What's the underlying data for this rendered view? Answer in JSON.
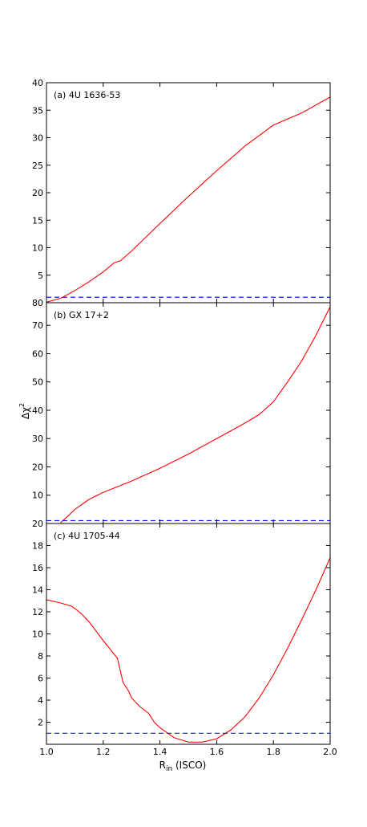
{
  "figure": {
    "ylabel_main": "Δχ",
    "ylabel_sup": "2",
    "xlabel_main": "R",
    "xlabel_sub": "in",
    "xlabel_rest": " (ISCO)"
  },
  "chart_data": [
    {
      "type": "line",
      "panel_label": "(a) 4U 1636-53",
      "xlim": [
        1.0,
        2.0
      ],
      "ylim": [
        0,
        40
      ],
      "yticks": [
        0,
        5,
        10,
        15,
        20,
        25,
        30,
        35,
        40
      ],
      "ytick_labels": [
        "",
        "5",
        "10",
        "15",
        "20",
        "25",
        "30",
        "35",
        "40"
      ],
      "series": [
        {
          "color": "#ff0000",
          "style": "solid",
          "x": [
            1.0,
            1.05,
            1.1,
            1.15,
            1.2,
            1.24,
            1.26,
            1.3,
            1.4,
            1.5,
            1.6,
            1.7,
            1.8,
            1.9,
            2.0
          ],
          "y": [
            0.1,
            0.8,
            2.2,
            3.8,
            5.6,
            7.3,
            7.6,
            9.4,
            14.4,
            19.3,
            24.0,
            28.5,
            32.3,
            34.5,
            37.4
          ]
        },
        {
          "color": "#0000ff",
          "style": "dashed",
          "x": [
            1.0,
            2.0
          ],
          "y": [
            1.0,
            1.0
          ]
        }
      ]
    },
    {
      "type": "line",
      "panel_label": "(b) GX 17+2",
      "xlim": [
        1.0,
        2.0
      ],
      "ylim": [
        0,
        78
      ],
      "yticks": [
        0,
        10,
        20,
        30,
        40,
        50,
        60,
        70
      ],
      "ytick_labels": [
        "",
        "10",
        "20",
        "30",
        "40",
        "50",
        "60",
        "70"
      ],
      "series": [
        {
          "color": "#ff0000",
          "style": "solid",
          "x": [
            1.05,
            1.08,
            1.1,
            1.15,
            1.2,
            1.3,
            1.4,
            1.5,
            1.6,
            1.7,
            1.75,
            1.8,
            1.85,
            1.9,
            1.95,
            2.0
          ],
          "y": [
            0.3,
            3.0,
            5.0,
            8.5,
            11.0,
            15.0,
            19.5,
            24.5,
            30.0,
            35.5,
            38.5,
            43.0,
            50.0,
            57.5,
            66.5,
            76.5
          ]
        },
        {
          "color": "#0000ff",
          "style": "dashed",
          "x": [
            1.0,
            2.0
          ],
          "y": [
            1.0,
            1.0
          ]
        }
      ]
    },
    {
      "type": "line",
      "panel_label": "(c) 4U 1705-44",
      "xlim": [
        1.0,
        2.0
      ],
      "ylim": [
        0,
        20
      ],
      "yticks": [
        0,
        2,
        4,
        6,
        8,
        10,
        12,
        14,
        16,
        18
      ],
      "ytick_labels": [
        "",
        "2",
        "4",
        "6",
        "8",
        "10",
        "12",
        "14",
        "16",
        "18"
      ],
      "xticks": [
        1.0,
        1.2,
        1.4,
        1.6,
        1.8,
        2.0
      ],
      "xtick_labels": [
        "1.0",
        "1.2",
        "1.4",
        "1.6",
        "1.8",
        "2.0"
      ],
      "series": [
        {
          "color": "#ff0000",
          "style": "solid",
          "x": [
            1.0,
            1.05,
            1.09,
            1.12,
            1.15,
            1.2,
            1.25,
            1.27,
            1.29,
            1.3,
            1.33,
            1.36,
            1.38,
            1.4,
            1.45,
            1.5,
            1.55,
            1.6,
            1.65,
            1.7,
            1.75,
            1.8,
            1.85,
            1.9,
            1.95,
            2.0
          ],
          "y": [
            13.1,
            12.8,
            12.5,
            11.9,
            11.1,
            9.4,
            7.8,
            5.6,
            4.8,
            4.2,
            3.4,
            2.8,
            2.0,
            1.5,
            0.6,
            0.2,
            0.2,
            0.5,
            1.3,
            2.5,
            4.2,
            6.3,
            8.7,
            11.3,
            14.0,
            16.9
          ]
        },
        {
          "color": "#0000ff",
          "style": "dashed",
          "x": [
            1.0,
            2.0
          ],
          "y": [
            1.0,
            1.0
          ]
        }
      ]
    }
  ]
}
